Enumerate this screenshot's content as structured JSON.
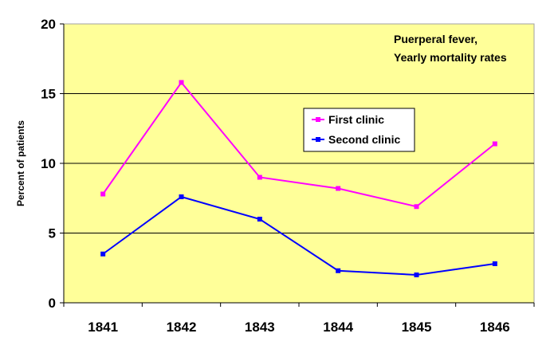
{
  "chart_data": {
    "type": "line",
    "title": "",
    "annotation_lines": [
      "Puerperal fever,",
      "Yearly mortality rates"
    ],
    "ylabel": "Percent of patients",
    "xlabel": "",
    "categories": [
      "1841",
      "1842",
      "1843",
      "1844",
      "1845",
      "1846"
    ],
    "ylim": [
      0,
      20
    ],
    "yticks": [
      "0",
      "5",
      "10",
      "15",
      "20"
    ],
    "grid": true,
    "legend_placement": "center-right",
    "plot_background": "#ffff99",
    "series": [
      {
        "name": "First clinic",
        "color": "#ff00ff",
        "values": [
          7.8,
          15.8,
          9.0,
          8.2,
          6.9,
          11.4
        ]
      },
      {
        "name": "Second clinic",
        "color": "#0000ff",
        "values": [
          3.5,
          7.6,
          6.0,
          2.3,
          2.0,
          2.8
        ]
      }
    ]
  }
}
